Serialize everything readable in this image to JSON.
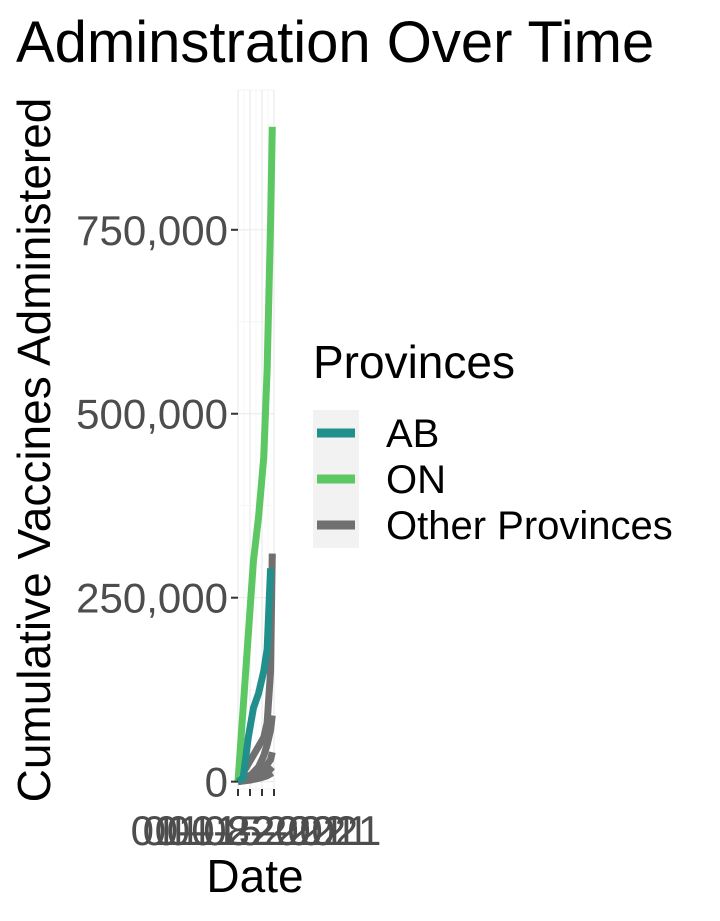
{
  "chart_data": {
    "type": "line",
    "title": "Adminstration Over Time",
    "xlabel": "Date",
    "ylabel": "Cumulative Vaccines Administered",
    "ylim": [
      -10000,
      940000
    ],
    "xlim": [
      "2021-01-01",
      "2021-01-22"
    ],
    "y_ticks": [
      0,
      250000,
      500000,
      750000
    ],
    "y_tick_labels": [
      "0",
      "250,000",
      "500,000",
      "750,000"
    ],
    "x_tick_labels": [
      "01-01-2021",
      "01-08-2021",
      "01-15-2021",
      "01-22-2021"
    ],
    "grid": true,
    "legend": {
      "title": "Provinces",
      "placement": "right",
      "entries": [
        {
          "label": "AB",
          "color": "#21908C"
        },
        {
          "label": "ON",
          "color": "#5DC863"
        },
        {
          "label": "Other Provinces",
          "color": "#707070"
        }
      ]
    },
    "series": [
      {
        "name": "AB",
        "color": "#21908C",
        "points": [
          {
            "x": "2021-01-01",
            "y": 0
          },
          {
            "x": "2021-01-04",
            "y": 5000
          },
          {
            "x": "2021-01-07",
            "y": 60000
          },
          {
            "x": "2021-01-10",
            "y": 100000
          },
          {
            "x": "2021-01-13",
            "y": 120000
          },
          {
            "x": "2021-01-16",
            "y": 150000
          },
          {
            "x": "2021-01-18",
            "y": 180000
          },
          {
            "x": "2021-01-20",
            "y": 290000
          }
        ]
      },
      {
        "name": "ON",
        "color": "#5DC863",
        "points": [
          {
            "x": "2021-01-01",
            "y": 0
          },
          {
            "x": "2021-01-04",
            "y": 100000
          },
          {
            "x": "2021-01-07",
            "y": 200000
          },
          {
            "x": "2021-01-10",
            "y": 300000
          },
          {
            "x": "2021-01-13",
            "y": 360000
          },
          {
            "x": "2021-01-16",
            "y": 440000
          },
          {
            "x": "2021-01-18",
            "y": 560000
          },
          {
            "x": "2021-01-20",
            "y": 760000
          },
          {
            "x": "2021-01-21",
            "y": 890000
          }
        ]
      },
      {
        "name": "Other Provinces",
        "color": "#707070",
        "points": [
          {
            "x": "2021-01-01",
            "y": 0
          },
          {
            "x": "2021-01-05",
            "y": 5000
          },
          {
            "x": "2021-01-09",
            "y": 10000
          },
          {
            "x": "2021-01-13",
            "y": 20000
          },
          {
            "x": "2021-01-16",
            "y": 35000
          },
          {
            "x": "2021-01-18",
            "y": 50000
          },
          {
            "x": "2021-01-20",
            "y": 70000
          },
          {
            "x": "2021-01-21",
            "y": 90000
          }
        ]
      },
      {
        "name": "Other Provinces",
        "color": "#707070",
        "points": [
          {
            "x": "2021-01-01",
            "y": 0
          },
          {
            "x": "2021-01-05",
            "y": 3000
          },
          {
            "x": "2021-01-10",
            "y": 8000
          },
          {
            "x": "2021-01-14",
            "y": 12000
          },
          {
            "x": "2021-01-17",
            "y": 20000
          },
          {
            "x": "2021-01-20",
            "y": 30000
          },
          {
            "x": "2021-01-21",
            "y": 40000
          }
        ]
      },
      {
        "name": "Other Provinces",
        "color": "#707070",
        "points": [
          {
            "x": "2021-01-01",
            "y": 0
          },
          {
            "x": "2021-01-06",
            "y": 2000
          },
          {
            "x": "2021-01-11",
            "y": 4000
          },
          {
            "x": "2021-01-15",
            "y": 8000
          },
          {
            "x": "2021-01-18",
            "y": 12000
          },
          {
            "x": "2021-01-21",
            "y": 20000
          }
        ]
      },
      {
        "name": "Other Provinces",
        "color": "#707070",
        "points": [
          {
            "x": "2021-01-01",
            "y": 0
          },
          {
            "x": "2021-01-08",
            "y": 2000
          },
          {
            "x": "2021-01-14",
            "y": 5000
          },
          {
            "x": "2021-01-18",
            "y": 8000
          },
          {
            "x": "2021-01-21",
            "y": 12000
          }
        ]
      },
      {
        "name": "Other Provinces",
        "color": "#707070",
        "points": [
          {
            "x": "2021-01-01",
            "y": 0
          },
          {
            "x": "2021-01-16",
            "y": 60000
          },
          {
            "x": "2021-01-18",
            "y": 80000
          },
          {
            "x": "2021-01-20",
            "y": 150000
          },
          {
            "x": "2021-01-21",
            "y": 310000
          }
        ]
      }
    ]
  }
}
